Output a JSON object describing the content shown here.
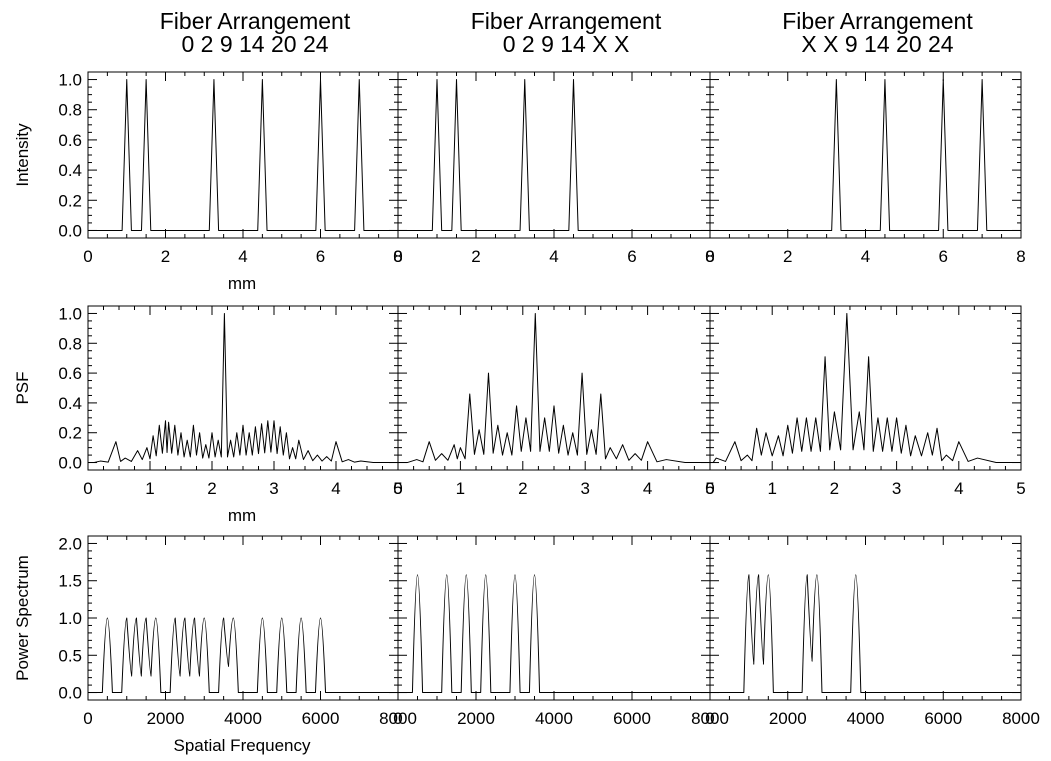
{
  "chart_data": [
    {
      "type": "line",
      "title": [
        "Fiber Arrangement",
        "0 2 9 14 20 24"
      ],
      "row": "intensity",
      "xlim": [
        0,
        8
      ],
      "ylim": [
        -0.05,
        1.05
      ],
      "xticks": [
        "0",
        "2",
        "4",
        "6",
        "8"
      ],
      "yticks": [
        "0.0",
        "0.2",
        "0.4",
        "0.6",
        "0.8",
        "1.0"
      ],
      "ylabel": "Intensity",
      "xlabel": "mm",
      "peaks": [
        1.0,
        1.5,
        3.25,
        4.5,
        6.0,
        7.0
      ]
    },
    {
      "type": "line",
      "title": [
        "Fiber Arrangement",
        "0 2 9 14 X X"
      ],
      "row": "intensity",
      "xlim": [
        0,
        8
      ],
      "ylim": [
        -0.05,
        1.05
      ],
      "xticks": [
        "0",
        "2",
        "4",
        "6",
        "8"
      ],
      "peaks": [
        1.0,
        1.5,
        3.25,
        4.5
      ]
    },
    {
      "type": "line",
      "title": [
        "Fiber Arrangement",
        "X X 9 14 20 24"
      ],
      "row": "intensity",
      "xlim": [
        0,
        8
      ],
      "ylim": [
        -0.05,
        1.05
      ],
      "xticks": [
        "0",
        "2",
        "4",
        "6",
        "8"
      ],
      "peaks": [
        3.25,
        4.5,
        6.0,
        7.0
      ]
    },
    {
      "type": "line",
      "row": "psf",
      "xlim": [
        0,
        5
      ],
      "ylim": [
        -0.05,
        1.05
      ],
      "xticks": [
        "0",
        "1",
        "2",
        "3",
        "4",
        "5"
      ],
      "yticks": [
        "0.0",
        "0.2",
        "0.4",
        "0.6",
        "0.8",
        "1.0"
      ],
      "ylabel": "PSF",
      "xlabel": "mm",
      "x": [
        0.0,
        0.2,
        0.45,
        0.6,
        0.8,
        0.95,
        1.05,
        1.15,
        1.25,
        1.3,
        1.4,
        1.5,
        1.6,
        1.7,
        1.8,
        1.9,
        2.0,
        2.1,
        2.2,
        2.3,
        2.4,
        2.5,
        2.6,
        2.7,
        2.8,
        2.9,
        3.0,
        3.1,
        3.2,
        3.3,
        3.4,
        3.55,
        3.7,
        3.85,
        4.0,
        4.2,
        4.4
      ],
      "y": [
        0.0,
        0.01,
        0.14,
        0.03,
        0.08,
        0.1,
        0.18,
        0.25,
        0.28,
        0.27,
        0.25,
        0.2,
        0.15,
        0.25,
        0.2,
        0.12,
        0.2,
        0.15,
        1.0,
        0.15,
        0.2,
        0.25,
        0.2,
        0.24,
        0.26,
        0.28,
        0.28,
        0.24,
        0.2,
        0.1,
        0.15,
        0.08,
        0.05,
        0.04,
        0.14,
        0.02,
        0.01
      ]
    },
    {
      "type": "line",
      "row": "psf",
      "xlim": [
        0,
        5
      ],
      "ylim": [
        -0.05,
        1.05
      ],
      "xticks": [
        "0",
        "1",
        "2",
        "3",
        "4",
        "5"
      ],
      "x": [
        0.0,
        0.3,
        0.5,
        0.7,
        0.9,
        1.0,
        1.15,
        1.3,
        1.45,
        1.6,
        1.75,
        1.9,
        2.05,
        2.2,
        2.35,
        2.5,
        2.65,
        2.8,
        2.95,
        3.1,
        3.25,
        3.4,
        3.6,
        3.8,
        4.0,
        4.3
      ],
      "y": [
        0.0,
        0.02,
        0.14,
        0.06,
        0.12,
        0.1,
        0.46,
        0.22,
        0.6,
        0.25,
        0.2,
        0.38,
        0.3,
        1.0,
        0.3,
        0.38,
        0.25,
        0.2,
        0.6,
        0.22,
        0.46,
        0.1,
        0.12,
        0.06,
        0.14,
        0.02
      ]
    },
    {
      "type": "line",
      "row": "psf",
      "xlim": [
        0,
        5
      ],
      "ylim": [
        -0.05,
        1.05
      ],
      "xticks": [
        "0",
        "1",
        "2",
        "3",
        "4",
        "5"
      ],
      "x": [
        0.0,
        0.1,
        0.4,
        0.6,
        0.75,
        0.9,
        1.1,
        1.25,
        1.4,
        1.55,
        1.7,
        1.85,
        2.0,
        2.2,
        2.4,
        2.55,
        2.7,
        2.85,
        3.0,
        3.15,
        3.3,
        3.5,
        3.65,
        3.8,
        4.0,
        4.3
      ],
      "y": [
        0.0,
        0.03,
        0.14,
        0.05,
        0.23,
        0.2,
        0.18,
        0.25,
        0.3,
        0.3,
        0.3,
        0.71,
        0.34,
        1.0,
        0.34,
        0.71,
        0.3,
        0.3,
        0.3,
        0.25,
        0.18,
        0.2,
        0.23,
        0.05,
        0.14,
        0.03
      ]
    },
    {
      "type": "line",
      "row": "power",
      "xlim": [
        0,
        8000
      ],
      "ylim": [
        -0.1,
        2.1
      ],
      "xticks": [
        "0",
        "2000",
        "4000",
        "6000",
        "8000"
      ],
      "yticks": [
        "0.0",
        "0.5",
        "1.0",
        "1.5",
        "2.0"
      ],
      "ylabel": "Power Spectrum",
      "xlabel": "Spatial Frequency",
      "groups": [
        {
          "centers": [
            500
          ],
          "height": 1.0,
          "min": 0.0
        },
        {
          "centers": [
            1000,
            1250,
            1500,
            1750
          ],
          "height": 1.0,
          "min": 0.22
        },
        {
          "centers": [
            2250,
            2500,
            2750,
            3000
          ],
          "height": 1.0,
          "min": 0.22
        },
        {
          "centers": [
            3500,
            3750
          ],
          "height": 1.0,
          "min": 0.35
        },
        {
          "centers": [
            4500
          ],
          "height": 1.0,
          "min": 0.0
        },
        {
          "centers": [
            5000
          ],
          "height": 1.0,
          "min": 0.0
        },
        {
          "centers": [
            5500
          ],
          "height": 1.0,
          "min": 0.0
        },
        {
          "centers": [
            6000
          ],
          "height": 1.0,
          "min": 0.0
        }
      ]
    },
    {
      "type": "line",
      "row": "power",
      "xlim": [
        0,
        8000
      ],
      "ylim": [
        -0.1,
        2.1
      ],
      "xticks": [
        "0",
        "2000",
        "4000",
        "6000",
        "8000"
      ],
      "groups": [
        {
          "centers": [
            500
          ],
          "height": 1.58,
          "min": 0.0
        },
        {
          "centers": [
            1250
          ],
          "height": 1.58,
          "min": 0.0
        },
        {
          "centers": [
            1750
          ],
          "height": 1.58,
          "min": 0.0
        },
        {
          "centers": [
            2250
          ],
          "height": 1.58,
          "min": 0.0
        },
        {
          "centers": [
            3000
          ],
          "height": 1.58,
          "min": 0.0
        },
        {
          "centers": [
            3500
          ],
          "height": 1.58,
          "min": 0.0
        }
      ]
    },
    {
      "type": "line",
      "row": "power",
      "xlim": [
        0,
        8000
      ],
      "ylim": [
        -0.1,
        2.1
      ],
      "xticks": [
        "0",
        "2000",
        "4000",
        "6000",
        "8000"
      ],
      "groups": [
        {
          "centers": [
            1000,
            1250,
            1500
          ],
          "height": 1.58,
          "min": 0.38
        },
        {
          "centers": [
            2500,
            2750
          ],
          "height": 1.58,
          "min": 0.42
        },
        {
          "centers": [
            3750
          ],
          "height": 1.58,
          "min": 0.0
        }
      ]
    }
  ]
}
